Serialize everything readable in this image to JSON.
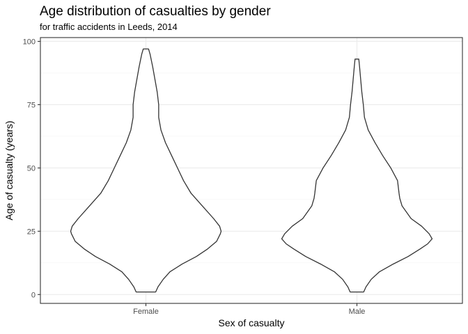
{
  "chart_data": {
    "type": "violin",
    "title": "Age distribution of casualties by gender",
    "subtitle": "for traffic accidents in Leeds, 2014",
    "xlabel": "Sex of casualty",
    "ylabel": "Age of casualty (years)",
    "categories": [
      "Female",
      "Male"
    ],
    "ylim": [
      -3.5,
      101.5
    ],
    "yticks": [
      0,
      25,
      50,
      75,
      100
    ],
    "grid": true,
    "colors": {
      "outline": "#333333",
      "fill": "#ffffff",
      "grid": "#ebebeb"
    },
    "series": [
      {
        "category": "Female",
        "min": 1,
        "max": 97,
        "profile": [
          [
            1,
            0.13
          ],
          [
            3,
            0.16
          ],
          [
            6,
            0.23
          ],
          [
            9,
            0.32
          ],
          [
            12,
            0.48
          ],
          [
            15,
            0.67
          ],
          [
            18,
            0.82
          ],
          [
            21,
            0.94
          ],
          [
            24,
            0.99
          ],
          [
            25,
            1.0
          ],
          [
            27,
            0.98
          ],
          [
            30,
            0.9
          ],
          [
            35,
            0.75
          ],
          [
            40,
            0.6
          ],
          [
            45,
            0.5
          ],
          [
            50,
            0.42
          ],
          [
            55,
            0.34
          ],
          [
            60,
            0.26
          ],
          [
            65,
            0.2
          ],
          [
            70,
            0.17
          ],
          [
            75,
            0.17
          ],
          [
            80,
            0.15
          ],
          [
            85,
            0.12
          ],
          [
            90,
            0.09
          ],
          [
            95,
            0.055
          ],
          [
            97,
            0.035
          ]
        ]
      },
      {
        "category": "Male",
        "min": 1,
        "max": 93,
        "profile": [
          [
            1,
            0.09
          ],
          [
            3,
            0.12
          ],
          [
            6,
            0.19
          ],
          [
            9,
            0.3
          ],
          [
            12,
            0.48
          ],
          [
            15,
            0.68
          ],
          [
            18,
            0.84
          ],
          [
            20,
            0.94
          ],
          [
            22,
            1.0
          ],
          [
            24,
            0.96
          ],
          [
            27,
            0.86
          ],
          [
            30,
            0.72
          ],
          [
            35,
            0.6
          ],
          [
            38,
            0.57
          ],
          [
            40,
            0.56
          ],
          [
            45,
            0.54
          ],
          [
            50,
            0.45
          ],
          [
            55,
            0.34
          ],
          [
            60,
            0.24
          ],
          [
            65,
            0.15
          ],
          [
            70,
            0.1
          ],
          [
            75,
            0.085
          ],
          [
            80,
            0.065
          ],
          [
            85,
            0.05
          ],
          [
            90,
            0.035
          ],
          [
            93,
            0.025
          ]
        ]
      }
    ]
  }
}
